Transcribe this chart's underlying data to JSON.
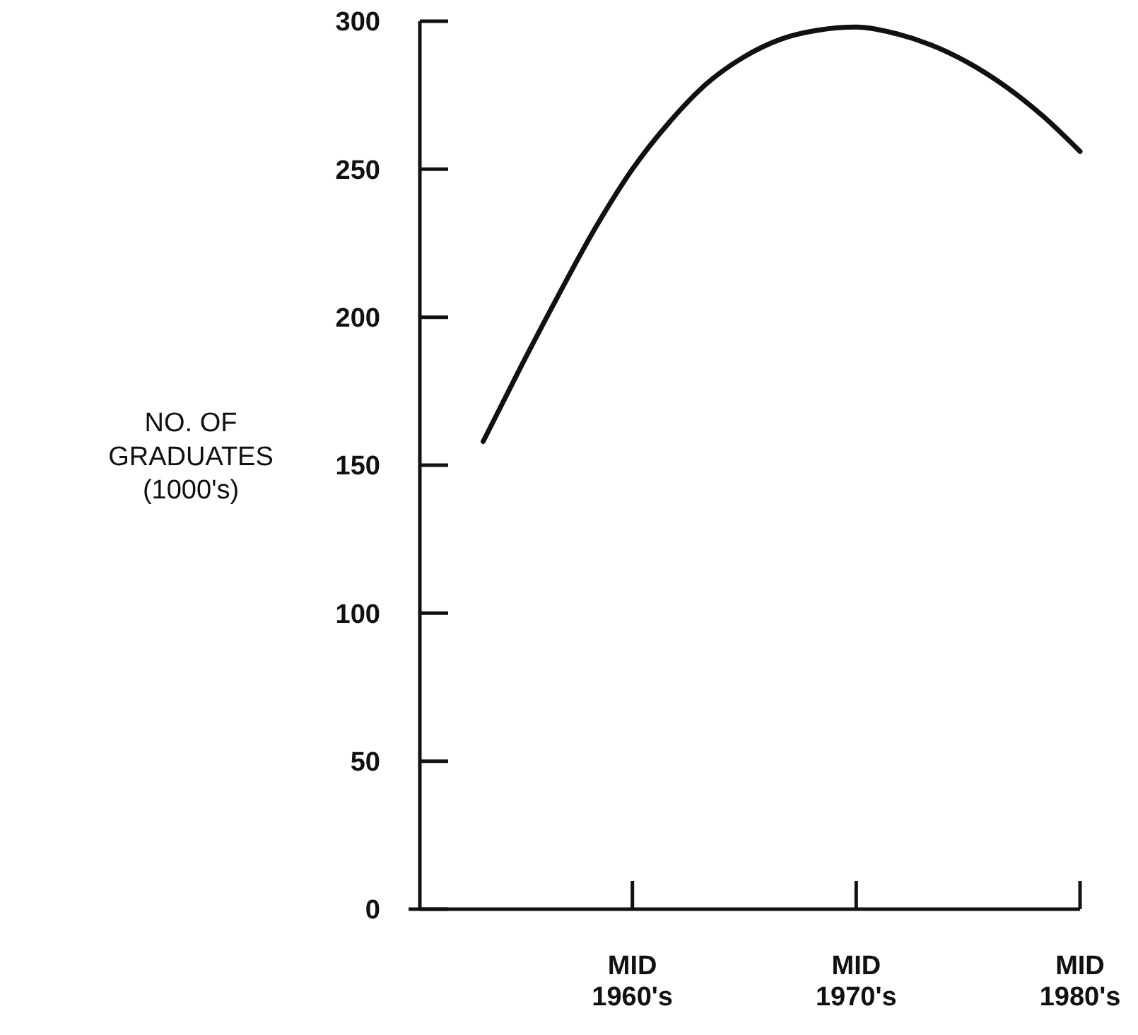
{
  "chart_data": {
    "type": "line",
    "ylabel": "NO. OF\nGRADUATES\n(1000's)",
    "categories": [
      null,
      null,
      null,
      null,
      "MID\n1960's",
      null,
      null,
      null,
      null,
      null,
      "MID\n1970's",
      null,
      null,
      null,
      null,
      null,
      "MID\n1980's"
    ],
    "series": [
      {
        "color": "#111111",
        "values": [
          158,
          183,
          207,
          230,
          250,
          266,
          279,
          288,
          294,
          297,
          298,
          296,
          292,
          286,
          278,
          268,
          256
        ]
      }
    ],
    "ylim": [
      0,
      300
    ],
    "yticks": [
      0,
      50,
      100,
      150,
      200,
      250,
      300
    ],
    "grid": false,
    "marker": "none",
    "line_style": "solid"
  }
}
